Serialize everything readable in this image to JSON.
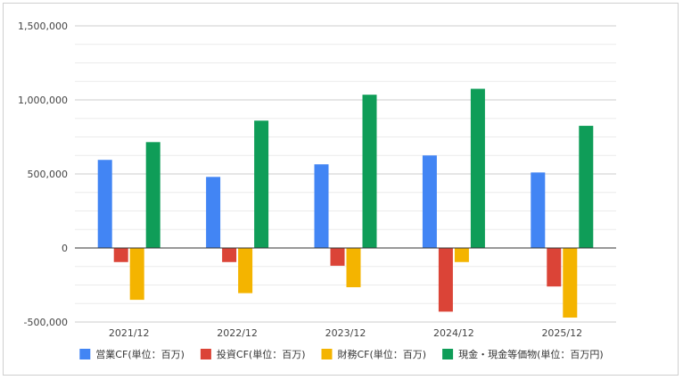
{
  "chart_data": {
    "type": "bar",
    "categories": [
      "2021/12",
      "2022/12",
      "2023/12",
      "2024/12",
      "2025/12"
    ],
    "series": [
      {
        "name": "営業CF(単位：百万)",
        "color": "#4285F4",
        "values": [
          595000,
          480000,
          565000,
          625000,
          510000
        ]
      },
      {
        "name": "投資CF(単位：百万)",
        "color": "#DB4437",
        "values": [
          -95000,
          -95000,
          -120000,
          -430000,
          -260000
        ]
      },
      {
        "name": "財務CF(単位：百万)",
        "color": "#F4B400",
        "values": [
          -350000,
          -305000,
          -265000,
          -95000,
          -470000
        ]
      },
      {
        "name": "現金・現金等価物(単位：百万円)",
        "color": "#0F9D58",
        "values": [
          715000,
          860000,
          1035000,
          1075000,
          825000
        ]
      }
    ],
    "y_ticks": [
      -500000,
      0,
      500000,
      1000000,
      1500000
    ],
    "y_tick_labels": [
      "-500,000",
      "0",
      "500,000",
      "1,000,000",
      "1,500,000"
    ],
    "ylim": [
      -500000,
      1500000
    ],
    "title": "",
    "xlabel": "",
    "ylabel": "",
    "legend_position": "bottom",
    "grid": true
  }
}
